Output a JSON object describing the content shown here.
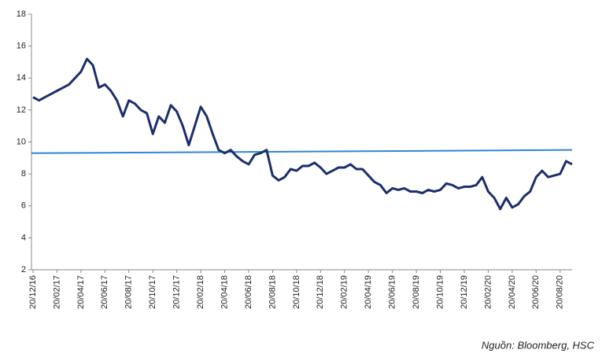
{
  "chart_data": {
    "type": "line",
    "categories": [
      "20/12/16",
      null,
      null,
      null,
      "20/02/17",
      null,
      null,
      null,
      "20/04/17",
      null,
      null,
      null,
      "20/06/17",
      null,
      null,
      null,
      "20/08/17",
      null,
      null,
      null,
      "20/10/17",
      null,
      null,
      null,
      "20/12/17",
      null,
      null,
      null,
      "20/02/18",
      null,
      null,
      null,
      "20/04/18",
      null,
      null,
      null,
      "20/06/18",
      null,
      null,
      null,
      "20/08/18",
      null,
      null,
      null,
      "20/10/18",
      null,
      null,
      null,
      "20/12/18",
      null,
      null,
      null,
      "20/02/19",
      null,
      null,
      null,
      "20/04/19",
      null,
      null,
      null,
      "20/06/19",
      null,
      null,
      null,
      "20/08/19",
      null,
      null,
      null,
      "20/10/19",
      null,
      null,
      null,
      "20/12/19",
      null,
      null,
      null,
      "20/02/20",
      null,
      null,
      null,
      "20/04/20",
      null,
      null,
      null,
      "20/06/20",
      null,
      null,
      null,
      "20/08/20",
      null,
      null
    ],
    "series": [
      {
        "color": "#1b2f6b",
        "values": [
          12.8,
          12.6,
          12.8,
          13.0,
          13.2,
          13.4,
          13.6,
          14.0,
          14.4,
          15.2,
          14.8,
          13.4,
          13.6,
          13.2,
          12.6,
          11.6,
          12.6,
          12.4,
          12.0,
          11.8,
          10.5,
          11.6,
          11.2,
          12.3,
          11.9,
          11.0,
          9.8,
          11.0,
          12.2,
          11.6,
          10.5,
          9.5,
          9.3,
          9.5,
          9.1,
          8.8,
          8.6,
          9.2,
          9.3,
          9.5,
          7.9,
          7.6,
          7.8,
          8.3,
          8.2,
          8.5,
          8.5,
          8.7,
          8.4,
          8.0,
          8.2,
          8.4,
          8.4,
          8.6,
          8.3,
          8.3,
          7.9,
          7.5,
          7.3,
          6.8,
          7.1,
          7.0,
          7.1,
          6.9,
          6.9,
          6.8,
          7.0,
          6.9,
          7.0,
          7.4,
          7.3,
          7.1,
          7.2,
          7.2,
          7.3,
          7.8,
          6.9,
          6.5,
          5.8,
          6.5,
          5.9,
          6.1,
          6.6,
          6.9,
          7.8,
          8.2,
          7.8,
          7.9,
          8.0,
          8.8,
          8.6
        ]
      }
    ],
    "trendline": {
      "color": "#2f86d1",
      "values": [
        9.3,
        9.5
      ]
    },
    "ylim": [
      2,
      18
    ],
    "yticks": [
      2,
      4,
      6,
      8,
      10,
      12,
      14,
      16,
      18
    ],
    "source": "Nguồn: Bloomberg, HSC"
  }
}
